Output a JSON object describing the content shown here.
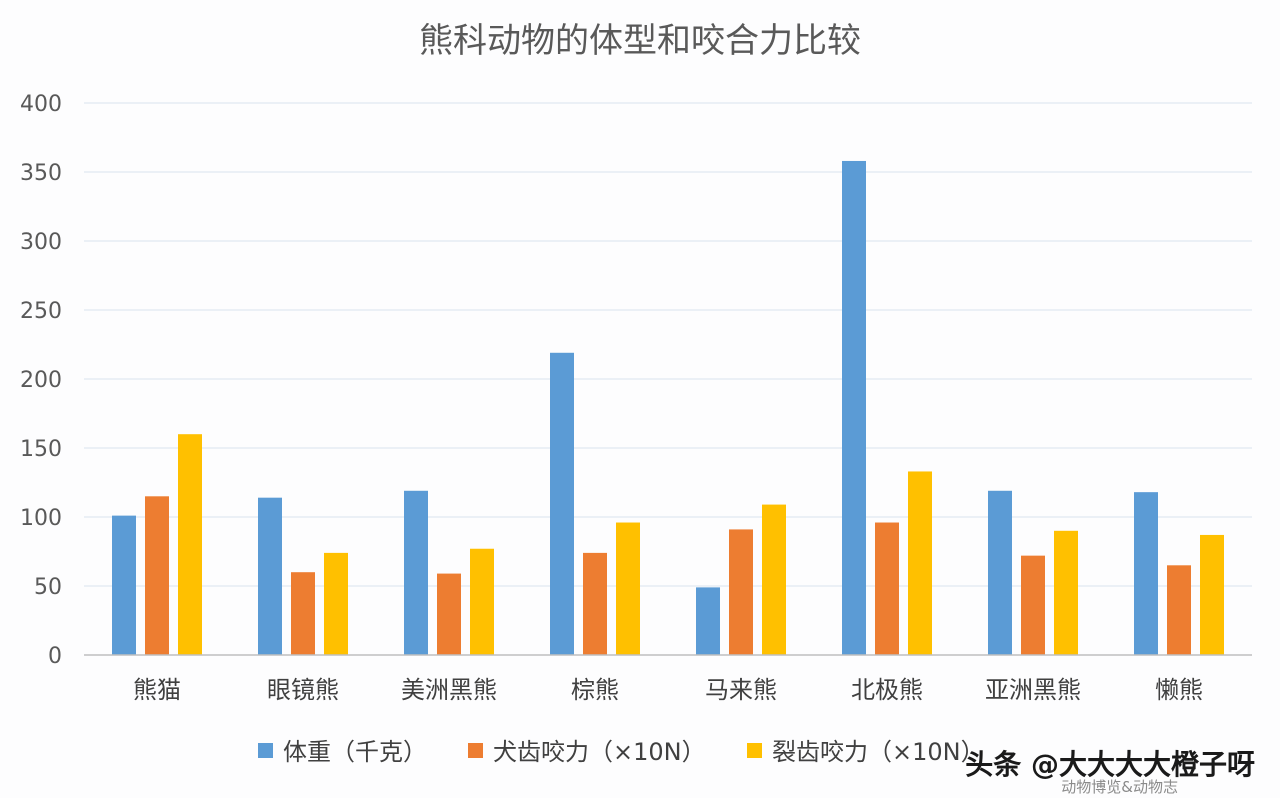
{
  "colors": {
    "weight": "#5B9BD5",
    "canine": "#ED7D31",
    "molar": "#FFC000",
    "grid": "#D9E2EE",
    "axis": "#BFBFBF"
  },
  "watermark": {
    "main": "头条 @大大大大橙子呀",
    "sub": "动物博览&动物志"
  },
  "chart_data": {
    "type": "bar",
    "title": "熊科动物的体型和咬合力比较",
    "xlabel": "",
    "ylabel": "",
    "ylim": [
      0,
      400
    ],
    "yticks": [
      "0",
      "50",
      "100",
      "150",
      "200",
      "250",
      "300",
      "350",
      "400"
    ],
    "grid": true,
    "legend_position": "bottom",
    "categories": [
      "熊猫",
      "眼镜熊",
      "美洲黑熊",
      "棕熊",
      "马来熊",
      "北极熊",
      "亚洲黑熊",
      "懒熊"
    ],
    "series": [
      {
        "name": "体重（千克）",
        "values": [
          101,
          114,
          119,
          219,
          49,
          358,
          119,
          118
        ]
      },
      {
        "name": "犬齿咬力（×10N）",
        "values": [
          115,
          60,
          59,
          74,
          91,
          96,
          72,
          65
        ]
      },
      {
        "name": "裂齿咬力（×10N）",
        "values": [
          160,
          74,
          77,
          96,
          109,
          133,
          90,
          87
        ]
      }
    ]
  }
}
